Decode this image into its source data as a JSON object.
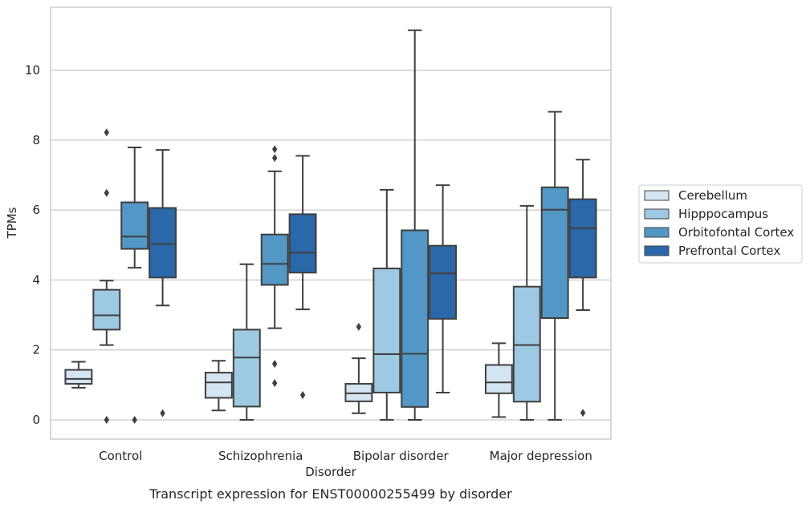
{
  "chart_data": {
    "type": "boxplot",
    "caption": "Transcript expression for ENST00000255499 by disorder",
    "xlabel": "Disorder",
    "ylabel": "TPMs",
    "ylim": [
      -0.55,
      11.8
    ],
    "yticks": [
      0,
      2,
      4,
      6,
      8,
      10
    ],
    "grid": "horizontal",
    "legend_position": "right",
    "categories": [
      "Control",
      "Schizophrenia",
      "Bipolar disorder",
      "Major depression"
    ],
    "series": [
      {
        "name": "Cerebellum",
        "color": "#d3e4f3",
        "boxes": [
          {
            "whislo": 0.92,
            "q1": 1.03,
            "med": 1.17,
            "q3": 1.43,
            "whishi": 1.66,
            "fliers": []
          },
          {
            "whislo": 0.27,
            "q1": 0.63,
            "med": 1.07,
            "q3": 1.35,
            "whishi": 1.69,
            "fliers": []
          },
          {
            "whislo": 0.19,
            "q1": 0.53,
            "med": 0.76,
            "q3": 1.03,
            "whishi": 1.76,
            "fliers": [
              2.66
            ]
          },
          {
            "whislo": 0.08,
            "q1": 0.76,
            "med": 1.07,
            "q3": 1.57,
            "whishi": 2.19,
            "fliers": []
          }
        ]
      },
      {
        "name": "Hipppocampus",
        "color": "#9dc9e2",
        "boxes": [
          {
            "whislo": 2.14,
            "q1": 2.58,
            "med": 2.99,
            "q3": 3.72,
            "whishi": 3.98,
            "fliers": [
              0.0,
              6.49,
              8.22
            ]
          },
          {
            "whislo": 0.0,
            "q1": 0.38,
            "med": 1.78,
            "q3": 2.58,
            "whishi": 4.45,
            "fliers": []
          },
          {
            "whislo": 0.0,
            "q1": 0.78,
            "med": 1.88,
            "q3": 4.33,
            "whishi": 6.58,
            "fliers": []
          },
          {
            "whislo": 0.0,
            "q1": 0.52,
            "med": 2.14,
            "q3": 3.81,
            "whishi": 6.12,
            "fliers": []
          }
        ]
      },
      {
        "name": "Orbitofontal Cortex",
        "color": "#5297c6",
        "boxes": [
          {
            "whislo": 4.35,
            "q1": 4.89,
            "med": 5.24,
            "q3": 6.22,
            "whishi": 7.79,
            "fliers": [
              0.0
            ]
          },
          {
            "whislo": 2.62,
            "q1": 3.86,
            "med": 4.46,
            "q3": 5.3,
            "whishi": 7.11,
            "fliers": [
              1.05,
              1.6,
              7.49,
              7.74
            ]
          },
          {
            "whislo": 0.0,
            "q1": 0.37,
            "med": 1.89,
            "q3": 5.42,
            "whishi": 11.14,
            "fliers": []
          },
          {
            "whislo": 0.0,
            "q1": 2.91,
            "med": 6.01,
            "q3": 6.65,
            "whishi": 8.81,
            "fliers": []
          }
        ]
      },
      {
        "name": "Prefrontal Cortex",
        "color": "#2a68aa",
        "boxes": [
          {
            "whislo": 3.27,
            "q1": 4.07,
            "med": 5.03,
            "q3": 6.06,
            "whishi": 7.72,
            "fliers": [
              0.19
            ]
          },
          {
            "whislo": 3.16,
            "q1": 4.21,
            "med": 4.78,
            "q3": 5.88,
            "whishi": 7.55,
            "fliers": [
              0.71
            ]
          },
          {
            "whislo": 0.78,
            "q1": 2.89,
            "med": 4.19,
            "q3": 4.98,
            "whishi": 6.71,
            "fliers": []
          },
          {
            "whislo": 3.14,
            "q1": 4.07,
            "med": 5.48,
            "q3": 6.31,
            "whishi": 7.44,
            "fliers": [
              0.2
            ]
          }
        ]
      }
    ]
  }
}
